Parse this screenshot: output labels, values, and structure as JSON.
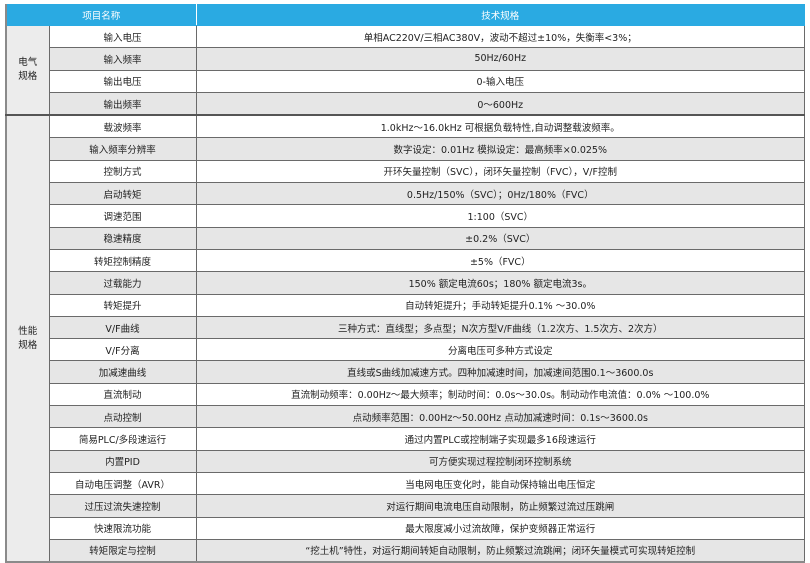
{
  "header": {
    "item_name": "项目名称",
    "spec": "技术规格"
  },
  "colors": {
    "header_bg": "#2aaae2",
    "alt_row": "#e6e6e6"
  },
  "groups": [
    {
      "category": [
        "电气",
        "规格"
      ],
      "rows": [
        {
          "name": "输入电压",
          "value": "单相AC220V/三相AC380V，波动不超过±10%，失衡率<3%；"
        },
        {
          "name": "输入频率",
          "value": "50Hz/60Hz"
        },
        {
          "name": "输出电压",
          "value": "0-输入电压"
        },
        {
          "name": "输出频率",
          "value": "0～600Hz"
        }
      ]
    },
    {
      "category": [
        "性能",
        "规格"
      ],
      "rows": [
        {
          "name": "载波频率",
          "value": "1.0kHz～16.0kHz 可根据负载特性,自动调整载波频率。"
        },
        {
          "name": "输入频率分辨率",
          "value": "数字设定：0.01Hz 模拟设定：最高频率×0.025%"
        },
        {
          "name": "控制方式",
          "value": "开环矢量控制（SVC），闭环矢量控制（FVC），V/F控制"
        },
        {
          "name": "启动转矩",
          "value": "0.5Hz/150%（SVC）；0Hz/180%（FVC）"
        },
        {
          "name": "调速范围",
          "value": "1:100（SVC）"
        },
        {
          "name": "稳速精度",
          "value": "±0.2%（SVC）"
        },
        {
          "name": "转矩控制精度",
          "value": "±5%（FVC）"
        },
        {
          "name": "过载能力",
          "value": "150% 额定电流60s；180% 额定电流3s。"
        },
        {
          "name": "转矩提升",
          "value": "自动转矩提升；手动转矩提升0.1% ～30.0%"
        },
        {
          "name": "V/F曲线",
          "value": "三种方式：直线型；多点型；N次方型V/F曲线（1.2次方、1.5次方、2次方）"
        },
        {
          "name": "V/F分离",
          "value": "分离电压可多种方式设定"
        },
        {
          "name": "加减速曲线",
          "value": "直线或S曲线加减速方式。四种加减速时间，加减速间范围0.1～3600.0s"
        },
        {
          "name": "直流制动",
          "value": "直流制动频率：0.00Hz～最大频率；制动时间：0.0s～30.0s。制动动作电流值：0.0% ～100.0%"
        },
        {
          "name": "点动控制",
          "value": "点动频率范围：0.00Hz～50.00Hz 点动加减速时间：0.1s～3600.0s"
        },
        {
          "name": "简易PLC/多段速运行",
          "value": "通过内置PLC或控制端子实现最多16段速运行"
        },
        {
          "name": "内置PID",
          "value": "可方便实现过程控制闭环控制系统"
        },
        {
          "name": "自动电压调整（AVR）",
          "value": "当电网电压变化时，能自动保持输出电压恒定"
        },
        {
          "name": "过压过流失速控制",
          "value": "对运行期间电流电压自动限制，防止频繁过流过压跳闸"
        },
        {
          "name": "快速限流功能",
          "value": "最大限度减小过流故障，保护变频器正常运行"
        },
        {
          "name": "转矩限定与控制",
          "value": "“挖土机”特性，对运行期间转矩自动限制，防止频繁过流跳闸；闭环矢量模式可实现转矩控制"
        }
      ]
    }
  ]
}
